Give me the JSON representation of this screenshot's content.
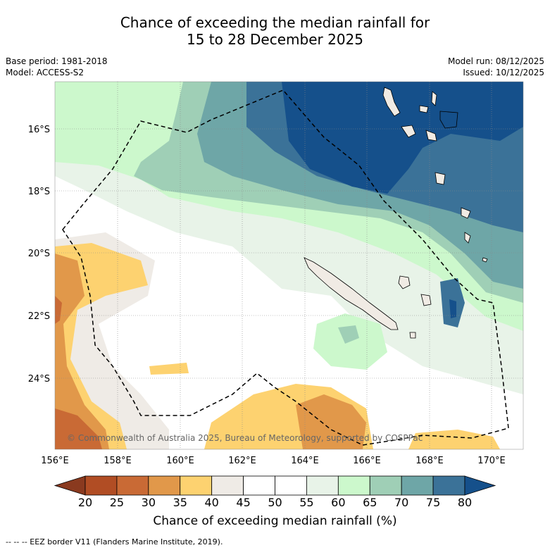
{
  "title_line1": "Chance of exceeding the median rainfall for",
  "title_line2": "15 to 28 December 2025",
  "base_period": "Base period: 1981-2018",
  "model": "Model: ACCESS-S2",
  "model_run": "Model run: 08/12/2025",
  "issued": "Issued: 10/12/2025",
  "copyright": "© Commonwealth of Australia 2025, Bureau of Meteorology, supported by COSPPac",
  "lat_labels": [
    "16°S",
    "18°S",
    "20°S",
    "22°S",
    "24°S"
  ],
  "lon_labels": [
    "156°E",
    "158°E",
    "160°E",
    "162°E",
    "164°E",
    "166°E",
    "168°E",
    "170°E"
  ],
  "colorbar": {
    "ticks": [
      "20",
      "25",
      "30",
      "35",
      "40",
      "45",
      "50",
      "55",
      "60",
      "65",
      "70",
      "75",
      "80"
    ],
    "colors": [
      "#b14d24",
      "#c96a35",
      "#e1984a",
      "#fdd270",
      "#efebe6",
      "#ffffff",
      "#ffffff",
      "#e8f3e8",
      "#ccf8cc",
      "#9fcfb6",
      "#6ea6a7",
      "#3b7298"
    ],
    "low_color": "#8a3a1f",
    "high_color": "#15508b",
    "label": "Chance of exceeding median rainfall (%)"
  },
  "footer": "--  --  -- EEZ border V11 (Flanders Marine Institute, 2019)."
}
